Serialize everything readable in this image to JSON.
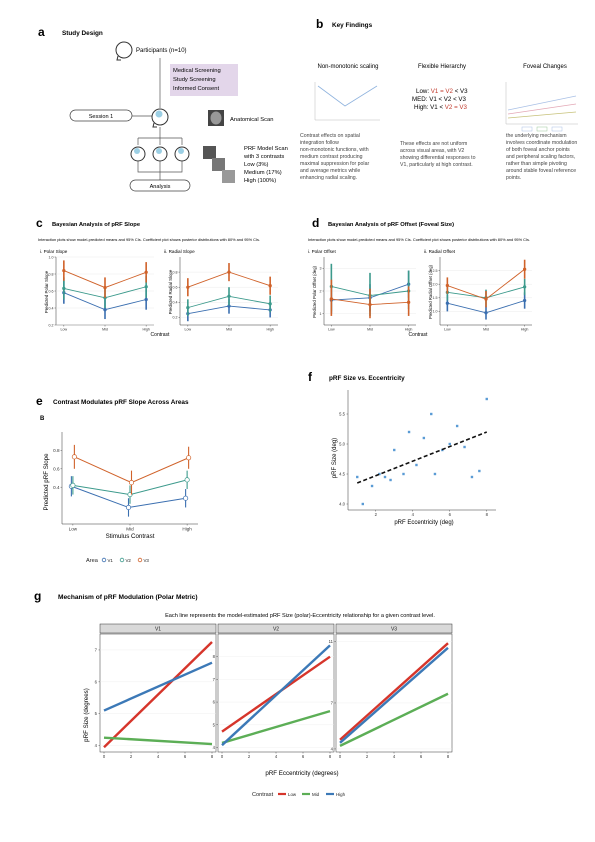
{
  "panel_a": {
    "letter": "a",
    "title": "Study Design",
    "participants": "Participants (n=10)",
    "screening": [
      "Medical Screening",
      "Study Screening",
      "Informed Consent"
    ],
    "session": "Session 1",
    "anatomical": "Anatomical Scan",
    "prf": [
      "PRF Model Scan",
      "with 3 contrasts",
      "Low (3%)",
      "Medium (17%)",
      "High (100%)"
    ],
    "analysis": "Analysis"
  },
  "panel_b": {
    "letter": "b",
    "title": "Key Findings",
    "col1_title": "Non-monotonic scaling",
    "col1_text": [
      "Contrast effects on spatial",
      "integration follow",
      "non-monotonic functions, with",
      "medium contrast producing",
      "maximal suppression for polar",
      "and average metrics while",
      "enhancing radial scaling."
    ],
    "col2_title": "Flexible Hierarchy",
    "hier_low": [
      "Low: ",
      "V1 = V2",
      " < V3"
    ],
    "hier_med": [
      "MED: V1 < V2 < V3"
    ],
    "hier_high": [
      "High: V1 < ",
      "V2 = V3"
    ],
    "col2_text": [
      "These effects are not uniform",
      "across visual areas, with V2",
      "showing differential responses to",
      "V1, particularly at high contrast."
    ],
    "col3_title": "Foveal Changes",
    "col3_text": [
      "the underlying mechanism",
      "involves coordinate modulation",
      "of both foveal anchor points",
      "and peripheral scaling factors,",
      "rather than simple pivoting",
      "around stable foveal reference",
      "points."
    ]
  },
  "panel_c": {
    "letter": "c",
    "title": "Bayesian Analysis of pRF Slope",
    "subtitle": "Interaction plots show model-predicted means and 95% CIs. Coefficient plot shows posterior distributions with 80% and 95% CIs.",
    "sub1": "i. Polar Slope",
    "sub2": "ii. Radial Slope",
    "ylabel1": "Predicted Polar Slope",
    "ylabel2": "Predicted Radial Slope",
    "xlabel": "Contrast"
  },
  "panel_d": {
    "letter": "d",
    "title": "Bayesian Analysis of pRF Offset (Foveal Size)",
    "subtitle": "Interaction plots show model-predicted means and 95% CIs. Coefficient plot shows posterior distributions with 80% and 95% CIs.",
    "sub1": "i. Polar Offset",
    "sub2": "ii. Radial Offset",
    "ylabel1": "Predicted Polar Offset (deg)",
    "ylabel2": "Predicted Radial Offset (deg)",
    "xlabel": "Contrast"
  },
  "panel_e": {
    "letter": "e",
    "title": "Contrast Modulates pRF Slope Across Areas",
    "tag": "B"
  },
  "panel_f": {
    "letter": "f",
    "title": "pRF Size vs. Eccentricity"
  },
  "panel_g": {
    "letter": "g",
    "title": "Mechanism of pRF Modulation (Polar Metric)",
    "subtitle": "Each line represents the model-estimated pRF Size (polar)-Eccentricity relationship for a given contrast level.",
    "ylabel": "pRF Size (degrees)",
    "xlabel": "pRF Eccentricity (degrees)",
    "legend_title": "Contrast"
  },
  "colors": {
    "low": "#d6352b",
    "mid": "#5cae56",
    "high": "#3c79b7",
    "v1": "#3b6fb0",
    "v2": "#3c9a8c",
    "v3": "#d0622a",
    "screen": "#e3d6ea"
  },
  "chart_data": [
    {
      "id": "c_polar",
      "type": "line",
      "title": "i. Polar Slope",
      "categories": [
        "Low",
        "Mid",
        "High"
      ],
      "ylabel": "Predicted Polar Slope",
      "xlabel": "Contrast",
      "ylim": [
        0.2,
        1.0
      ],
      "yticks": [
        "0.2",
        "0.4",
        "0.6",
        "0.8",
        "1.0"
      ],
      "series": [
        {
          "name": "V1",
          "values": [
            0.58,
            0.38,
            0.5
          ],
          "lo": [
            0.45,
            0.27,
            0.38
          ],
          "hi": [
            0.72,
            0.5,
            0.62
          ]
        },
        {
          "name": "V2",
          "values": [
            0.63,
            0.52,
            0.65
          ],
          "lo": [
            0.5,
            0.4,
            0.52
          ],
          "hi": [
            0.76,
            0.64,
            0.78
          ]
        },
        {
          "name": "V3",
          "values": [
            0.84,
            0.64,
            0.82
          ],
          "lo": [
            0.72,
            0.52,
            0.7
          ],
          "hi": [
            0.96,
            0.76,
            0.94
          ]
        }
      ]
    },
    {
      "id": "c_radial",
      "type": "line",
      "title": "ii. Radial Slope",
      "categories": [
        "Low",
        "Mid",
        "High"
      ],
      "ylabel": "Predicted Radial Slope",
      "xlabel": "Contrast",
      "ylim": [
        0.1,
        1.0
      ],
      "yticks": [
        "0.2",
        "0.4",
        "0.6",
        "0.8"
      ],
      "series": [
        {
          "name": "V1",
          "values": [
            0.25,
            0.35,
            0.3
          ],
          "lo": [
            0.15,
            0.25,
            0.2
          ],
          "hi": [
            0.35,
            0.45,
            0.4
          ]
        },
        {
          "name": "V2",
          "values": [
            0.33,
            0.48,
            0.38
          ],
          "lo": [
            0.22,
            0.36,
            0.27
          ],
          "hi": [
            0.44,
            0.6,
            0.49
          ]
        },
        {
          "name": "V3",
          "values": [
            0.6,
            0.8,
            0.62
          ],
          "lo": [
            0.48,
            0.68,
            0.5
          ],
          "hi": [
            0.72,
            0.92,
            0.74
          ]
        }
      ]
    },
    {
      "id": "d_polar",
      "type": "line",
      "title": "i. Polar Offset",
      "categories": [
        "Low",
        "Mid",
        "High"
      ],
      "ylabel": "Predicted Polar Offset (deg)",
      "xlabel": "Contrast",
      "ylim": [
        0.5,
        3.5
      ],
      "yticks": [
        "1",
        "2",
        "3"
      ],
      "series": [
        {
          "name": "V1",
          "values": [
            1.6,
            1.7,
            2.3
          ],
          "lo": [
            1.0,
            1.1,
            1.7
          ],
          "hi": [
            2.2,
            2.3,
            2.9
          ]
        },
        {
          "name": "V2",
          "values": [
            2.2,
            1.8,
            2.0
          ],
          "lo": [
            1.1,
            0.9,
            1.2
          ],
          "hi": [
            3.2,
            2.8,
            2.9
          ]
        },
        {
          "name": "V3",
          "values": [
            1.65,
            1.4,
            1.5
          ],
          "lo": [
            0.9,
            0.8,
            0.9
          ],
          "hi": [
            2.5,
            2.1,
            2.2
          ]
        }
      ]
    },
    {
      "id": "d_radial",
      "type": "line",
      "title": "ii. Radial Offset",
      "categories": [
        "Low",
        "Mid",
        "High"
      ],
      "ylabel": "Predicted Radial Offset (deg)",
      "xlabel": "Contrast",
      "ylim": [
        0.5,
        3.0
      ],
      "yticks": [
        "1.0",
        "1.5",
        "2.0",
        "2.5"
      ],
      "series": [
        {
          "name": "V1",
          "values": [
            1.3,
            0.95,
            1.4
          ],
          "lo": [
            1.0,
            0.7,
            1.1
          ],
          "hi": [
            1.6,
            1.2,
            1.7
          ]
        },
        {
          "name": "V2",
          "values": [
            1.7,
            1.5,
            1.9
          ],
          "lo": [
            1.4,
            1.2,
            1.6
          ],
          "hi": [
            2.0,
            1.8,
            2.2
          ]
        },
        {
          "name": "V3",
          "values": [
            1.95,
            1.45,
            2.55
          ],
          "lo": [
            1.65,
            1.15,
            2.2
          ],
          "hi": [
            2.25,
            1.75,
            2.9
          ]
        }
      ]
    },
    {
      "id": "e",
      "type": "line",
      "title": "Contrast Modulates pRF Slope Across Areas",
      "categories": [
        "Low",
        "Mid",
        "High"
      ],
      "ylabel": "Predicted pRF Slope",
      "xlabel": "Stimulus Contrast",
      "ylim": [
        0.0,
        1.0
      ],
      "yticks": [
        "0.4",
        "0.6",
        "0.8"
      ],
      "legend_title": "Area",
      "series": [
        {
          "name": "V1",
          "values": [
            0.41,
            0.18,
            0.28
          ],
          "lo": [
            0.3,
            0.08,
            0.18
          ],
          "hi": [
            0.52,
            0.28,
            0.38
          ]
        },
        {
          "name": "V2",
          "values": [
            0.42,
            0.32,
            0.48
          ],
          "lo": [
            0.32,
            0.22,
            0.38
          ],
          "hi": [
            0.52,
            0.42,
            0.58
          ]
        },
        {
          "name": "V3",
          "values": [
            0.73,
            0.45,
            0.72
          ],
          "lo": [
            0.6,
            0.32,
            0.6
          ],
          "hi": [
            0.86,
            0.58,
            0.84
          ]
        }
      ]
    },
    {
      "id": "f",
      "type": "scatter",
      "title": "pRF Size vs. Eccentricity",
      "xlabel": "pRF Eccentricity (deg)",
      "ylabel": "pRF Size (deg)",
      "xlim": [
        0.5,
        8.5
      ],
      "ylim": [
        3.9,
        5.9
      ],
      "xticks": [
        "2",
        "4",
        "6",
        "8"
      ],
      "yticks": [
        "4.0",
        "4.5",
        "5.0",
        "5.5"
      ],
      "x": [
        1.0,
        1.3,
        1.8,
        2.2,
        2.5,
        2.8,
        3.0,
        3.5,
        3.8,
        4.2,
        4.6,
        5.0,
        5.2,
        5.6,
        6.0,
        6.4,
        6.8,
        7.2,
        7.6,
        8.0
      ],
      "y": [
        4.45,
        4.0,
        4.3,
        4.5,
        4.45,
        4.4,
        4.9,
        4.5,
        5.2,
        4.65,
        5.1,
        5.5,
        4.5,
        4.9,
        5.0,
        5.3,
        4.95,
        4.45,
        4.55,
        5.75
      ],
      "trend": {
        "x": [
          1.0,
          8.0
        ],
        "y": [
          4.35,
          5.2
        ]
      }
    },
    {
      "id": "g",
      "type": "line",
      "title": "Mechanism of pRF Modulation (Polar Metric)",
      "xlabel": "pRF Eccentricity (degrees)",
      "ylabel": "pRF Size (degrees)",
      "legend": [
        "Low",
        "Mid",
        "High"
      ],
      "facets": [
        {
          "title": "V1",
          "xlim": [
            0,
            8
          ],
          "ylim": [
            3.8,
            7.5
          ],
          "yticks": [
            "4",
            "5",
            "6",
            "7"
          ],
          "lines": [
            {
              "name": "Low",
              "y0": 3.95,
              "y1": 7.25
            },
            {
              "name": "Mid",
              "y0": 4.25,
              "y1": 4.05
            },
            {
              "name": "High",
              "y0": 5.1,
              "y1": 6.6
            }
          ]
        },
        {
          "title": "V2",
          "xlim": [
            0,
            8
          ],
          "ylim": [
            3.8,
            9.0
          ],
          "yticks": [
            "4",
            "5",
            "6",
            "7",
            "8"
          ],
          "lines": [
            {
              "name": "Low",
              "y0": 4.7,
              "y1": 8.0
            },
            {
              "name": "Mid",
              "y0": 4.2,
              "y1": 5.6
            },
            {
              "name": "High",
              "y0": 4.1,
              "y1": 8.5
            }
          ]
        },
        {
          "title": "V3",
          "xlim": [
            0,
            8
          ],
          "ylim": [
            3.8,
            11.5
          ],
          "yticks": [
            "4",
            "7",
            "11"
          ],
          "lines": [
            {
              "name": "Low",
              "y0": 4.6,
              "y1": 10.9
            },
            {
              "name": "Mid",
              "y0": 4.2,
              "y1": 7.6
            },
            {
              "name": "High",
              "y0": 4.4,
              "y1": 10.6
            }
          ]
        }
      ],
      "xticks": [
        "0",
        "2",
        "4",
        "6",
        "8"
      ]
    }
  ]
}
